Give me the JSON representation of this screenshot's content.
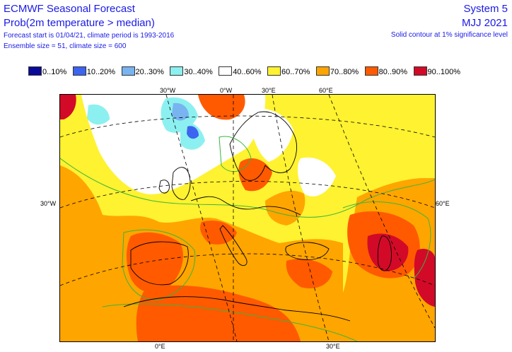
{
  "header": {
    "title": "ECMWF Seasonal Forecast",
    "subtitle": "Prob(2m temperature > median)",
    "info_line1": "Forecast start is 01/04/21, climate period is 1993-2016",
    "info_line2": "Ensemble size = 51, climate size = 600",
    "system": "System 5",
    "season": "MJJ 2021",
    "contour_note": "Solid contour at 1% significance level"
  },
  "legend": [
    {
      "label": "0..10%",
      "color": "#0a0a9a"
    },
    {
      "label": "10..20%",
      "color": "#3c64f0"
    },
    {
      "label": "20..30%",
      "color": "#78b4f0"
    },
    {
      "label": "30..40%",
      "color": "#8cf0f0"
    },
    {
      "label": "40..60%",
      "color": "#ffffff"
    },
    {
      "label": "60..70%",
      "color": "#fff230"
    },
    {
      "label": "70..80%",
      "color": "#ffa500"
    },
    {
      "label": "80..90%",
      "color": "#ff5a00"
    },
    {
      "label": "90..100%",
      "color": "#d20a28"
    }
  ],
  "axis_labels": {
    "top_30w": "30°W",
    "top_0e": "0°W",
    "top_30e": "30°E",
    "top_60e": "60°E",
    "left_30w": "30°W",
    "right_60e": "60°E",
    "bottom_0e": "0°E",
    "bottom_30e": "30°E"
  },
  "colors": {
    "text": "#1a1ae6",
    "contour": "#3cb43c",
    "coast": "#000000",
    "grid": "#000000"
  }
}
